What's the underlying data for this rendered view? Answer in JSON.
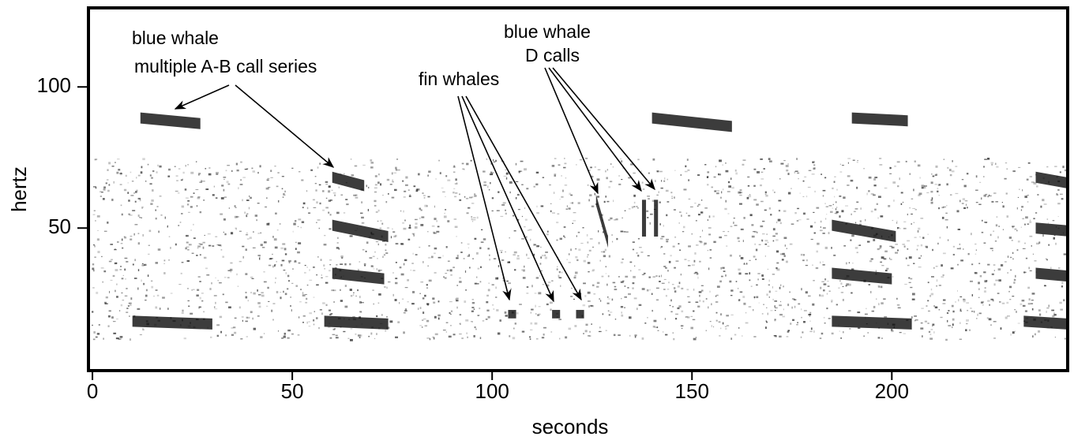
{
  "chart_data": {
    "type": "spectrogram",
    "xlabel": "seconds",
    "ylabel": "hertz",
    "xlim": [
      -1,
      244
    ],
    "ylim": [
      -0.5,
      128
    ],
    "xticks": [
      0,
      50,
      100,
      150,
      200
    ],
    "yticks": [
      50,
      100
    ],
    "calls": [
      {
        "t": [
          12,
          27
        ],
        "hz": [
          89,
          87
        ]
      },
      {
        "t": [
          60,
          68
        ],
        "hz": [
          68,
          65
        ]
      },
      {
        "t": [
          60,
          74
        ],
        "hz": [
          51,
          47
        ]
      },
      {
        "t": [
          60,
          73
        ],
        "hz": [
          34,
          32
        ]
      },
      {
        "t": [
          58,
          74
        ],
        "hz": [
          17,
          16
        ]
      },
      {
        "t": [
          10,
          30
        ],
        "hz": [
          17,
          16
        ]
      },
      {
        "t": [
          140,
          160
        ],
        "hz": [
          89,
          86
        ]
      },
      {
        "t": [
          190,
          204
        ],
        "hz": [
          89,
          88
        ]
      },
      {
        "t": [
          185,
          201
        ],
        "hz": [
          51,
          47
        ]
      },
      {
        "t": [
          185,
          200
        ],
        "hz": [
          34,
          32
        ]
      },
      {
        "t": [
          185,
          205
        ],
        "hz": [
          17,
          16
        ]
      },
      {
        "t": [
          236,
          244
        ],
        "hz": [
          68,
          66
        ]
      },
      {
        "t": [
          236,
          244
        ],
        "hz": [
          50,
          49
        ]
      },
      {
        "t": [
          236,
          244
        ],
        "hz": [
          34,
          33
        ]
      },
      {
        "t": [
          233,
          244
        ],
        "hz": [
          17,
          16
        ]
      },
      {
        "t": [
          126,
          129
        ],
        "hz": [
          60,
          45
        ]
      },
      {
        "t": [
          137.5,
          138.5
        ],
        "hz": [
          60,
          47
        ]
      },
      {
        "t": [
          140.5,
          141.5
        ],
        "hz": [
          60,
          47
        ]
      },
      {
        "t": [
          104,
          106
        ],
        "hz": [
          21,
          18
        ]
      },
      {
        "t": [
          115,
          117
        ],
        "hz": [
          21,
          18
        ]
      },
      {
        "t": [
          121,
          123
        ],
        "hz": [
          21,
          18
        ]
      }
    ],
    "annotations": [
      {
        "lines": [
          "blue whale",
          "multiple A-B call series"
        ]
      },
      {
        "lines": [
          "fin whales"
        ]
      },
      {
        "lines": [
          "blue whale",
          "D calls"
        ]
      }
    ]
  }
}
